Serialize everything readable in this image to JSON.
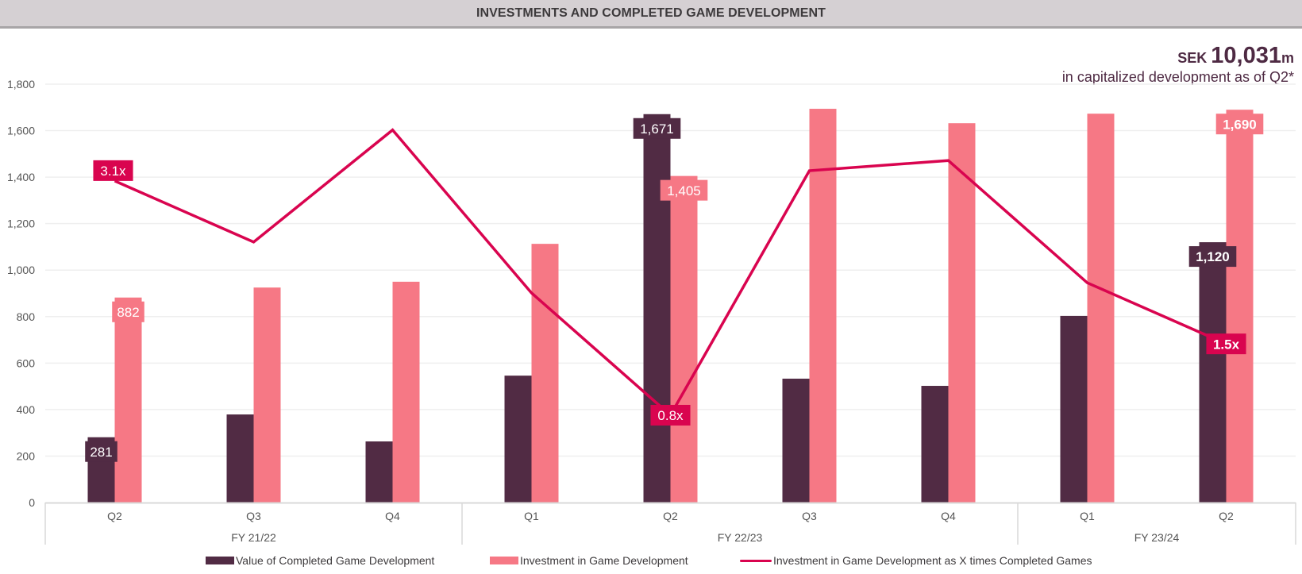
{
  "header": {
    "title": "INVESTMENTS AND COMPLETED GAME DEVELOPMENT"
  },
  "callout": {
    "currency": "SEK",
    "amount": "10,031",
    "unit": "m",
    "caption": "in capitalized development as of Q2*"
  },
  "colors": {
    "completed": "#512b44",
    "investment": "#f67885",
    "ratio_line": "#d9044f",
    "header_bg": "#d5d0d3",
    "grid": "#efefef"
  },
  "chart_data": {
    "type": "bar",
    "title": "INVESTMENTS AND COMPLETED GAME DEVELOPMENT",
    "xlabel": "",
    "ylabel": "",
    "ylim": [
      0,
      1800
    ],
    "yticks": [
      0,
      200,
      400,
      600,
      800,
      1000,
      1200,
      1400,
      1600,
      1800
    ],
    "ytick_labels": [
      "0",
      "200",
      "400",
      "600",
      "800",
      "1,000",
      "1,200",
      "1,400",
      "1,600",
      "1,800"
    ],
    "grid": true,
    "categories": [
      "Q2",
      "Q3",
      "Q4",
      "Q1",
      "Q2",
      "Q3",
      "Q4",
      "Q1",
      "Q2"
    ],
    "groups": [
      {
        "label": "FY 21/22",
        "count": 3
      },
      {
        "label": "FY 22/23",
        "count": 4
      },
      {
        "label": "FY 23/24",
        "count": 2
      }
    ],
    "series": [
      {
        "name": "Value of Completed Game Development",
        "kind": "bar",
        "values": [
          281,
          379,
          263,
          546,
          1671,
          533,
          502,
          803,
          1120
        ],
        "labels": [
          "281",
          null,
          null,
          null,
          "1,671",
          null,
          null,
          null,
          "1,120"
        ]
      },
      {
        "name": "Investment in Game Development",
        "kind": "bar",
        "values": [
          882,
          925,
          950,
          1113,
          1405,
          1694,
          1632,
          1673,
          1690
        ],
        "labels": [
          "882",
          null,
          null,
          null,
          "1,405",
          null,
          null,
          null,
          "1,690"
        ]
      },
      {
        "name": "Investment in Game Development as X times Completed Games",
        "kind": "line",
        "axis": "secondary",
        "values": [
          3.1,
          2.5,
          3.6,
          2.0,
          0.8,
          3.2,
          3.3,
          2.1,
          1.5
        ],
        "labels": [
          "3.1x",
          null,
          null,
          null,
          "0.8x",
          null,
          null,
          null,
          "1.5x"
        ]
      }
    ],
    "legend_position": "bottom"
  }
}
